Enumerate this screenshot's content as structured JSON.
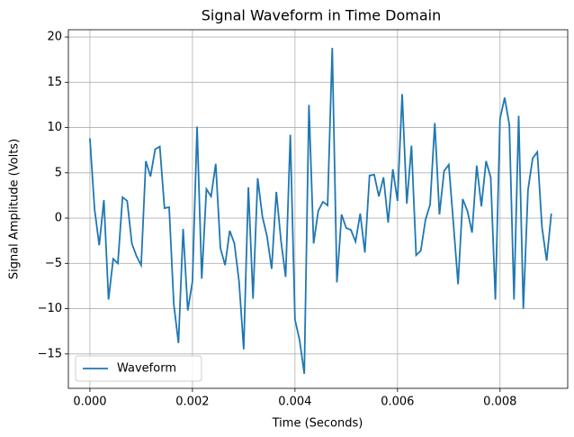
{
  "chart_data": {
    "type": "line",
    "title": "Signal Waveform in Time Domain",
    "xlabel": "Time (Seconds)",
    "ylabel": "Signal Amplitude (Volts)",
    "x": [
      0,
      9.09e-05,
      0.0001818,
      0.0002727,
      0.0003636,
      0.0004545,
      0.0005455,
      0.0006364,
      0.0007273,
      0.0008182,
      0.0009091,
      0.001,
      0.0010909,
      0.0011818,
      0.0012727,
      0.0013636,
      0.0014545,
      0.0015455,
      0.0016364,
      0.0017273,
      0.0018182,
      0.0019091,
      0.002,
      0.0020909,
      0.0021818,
      0.0022727,
      0.0023636,
      0.0024545,
      0.0025455,
      0.0026364,
      0.0027273,
      0.0028182,
      0.0029091,
      0.003,
      0.0030909,
      0.0031818,
      0.0032727,
      0.0033636,
      0.0034545,
      0.0035455,
      0.0036364,
      0.0037273,
      0.0038182,
      0.0039091,
      0.004,
      0.0040909,
      0.0041818,
      0.0042727,
      0.0043636,
      0.0044545,
      0.0045455,
      0.0046364,
      0.0047273,
      0.0048182,
      0.0049091,
      0.005,
      0.0050909,
      0.0051818,
      0.0052727,
      0.0053636,
      0.0054545,
      0.0055455,
      0.0056364,
      0.0057273,
      0.0058182,
      0.0059091,
      0.006,
      0.0060909,
      0.0061818,
      0.0062727,
      0.0063636,
      0.0064545,
      0.0065455,
      0.0066364,
      0.0067273,
      0.0068182,
      0.0069091,
      0.007,
      0.0070909,
      0.0071818,
      0.0072727,
      0.0073636,
      0.0074545,
      0.0075455,
      0.0076364,
      0.0077273,
      0.0078182,
      0.0079091,
      0.008,
      0.0080909,
      0.0081818,
      0.0082727,
      0.0083636,
      0.0084545,
      0.0085455,
      0.0086364,
      0.0087273,
      0.0088182,
      0.0089091,
      0.009
    ],
    "series": [
      {
        "name": "Waveform",
        "color": "#1f77b4",
        "values": [
          8.8,
          1.0,
          -3.0,
          2.0,
          -9.0,
          -4.5,
          -5.0,
          2.3,
          1.9,
          -2.8,
          -4.2,
          -5.2,
          6.3,
          4.6,
          7.6,
          7.9,
          1.1,
          1.2,
          -9.5,
          -13.8,
          -1.2,
          -10.2,
          -7.0,
          10.1,
          -6.7,
          3.2,
          2.4,
          6.0,
          -3.3,
          -5.2,
          -1.4,
          -2.8,
          -7.0,
          -14.5,
          3.4,
          -8.9,
          4.4,
          0.2,
          -2.0,
          -5.6,
          2.9,
          -2.5,
          -6.5,
          9.2,
          -11.2,
          -13.5,
          -17.2,
          12.5,
          -2.8,
          0.8,
          1.8,
          1.4,
          18.8,
          -7.1,
          0.4,
          -1.1,
          -1.3,
          -2.6,
          0.5,
          -3.8,
          4.7,
          4.8,
          2.4,
          4.5,
          -0.5,
          5.4,
          1.9,
          13.7,
          1.6,
          8.0,
          -4.1,
          -3.6,
          -0.2,
          1.5,
          10.5,
          0.4,
          5.2,
          5.9,
          -0.6,
          -7.3,
          2.1,
          0.8,
          -1.6,
          5.8,
          1.3,
          6.3,
          4.5,
          -9.0,
          11.0,
          13.3,
          10.3,
          -9.0,
          11.3,
          -10.0,
          3.1,
          6.6,
          7.3,
          -1.0,
          -4.7,
          0.5
        ]
      }
    ],
    "xlim": [
      -0.00042,
      0.00932
    ],
    "ylim": [
      -18.8,
      20.8
    ],
    "xticks": [
      {
        "value": 0,
        "label": "0.000"
      },
      {
        "value": 0.002,
        "label": "0.002"
      },
      {
        "value": 0.004,
        "label": "0.004"
      },
      {
        "value": 0.006,
        "label": "0.006"
      },
      {
        "value": 0.008,
        "label": "0.008"
      }
    ],
    "yticks": [
      {
        "value": -15,
        "label": "−15"
      },
      {
        "value": -10,
        "label": "−10"
      },
      {
        "value": -5,
        "label": "−5"
      },
      0,
      5,
      10,
      15,
      20
    ],
    "grid": true,
    "legend": "lower left"
  }
}
